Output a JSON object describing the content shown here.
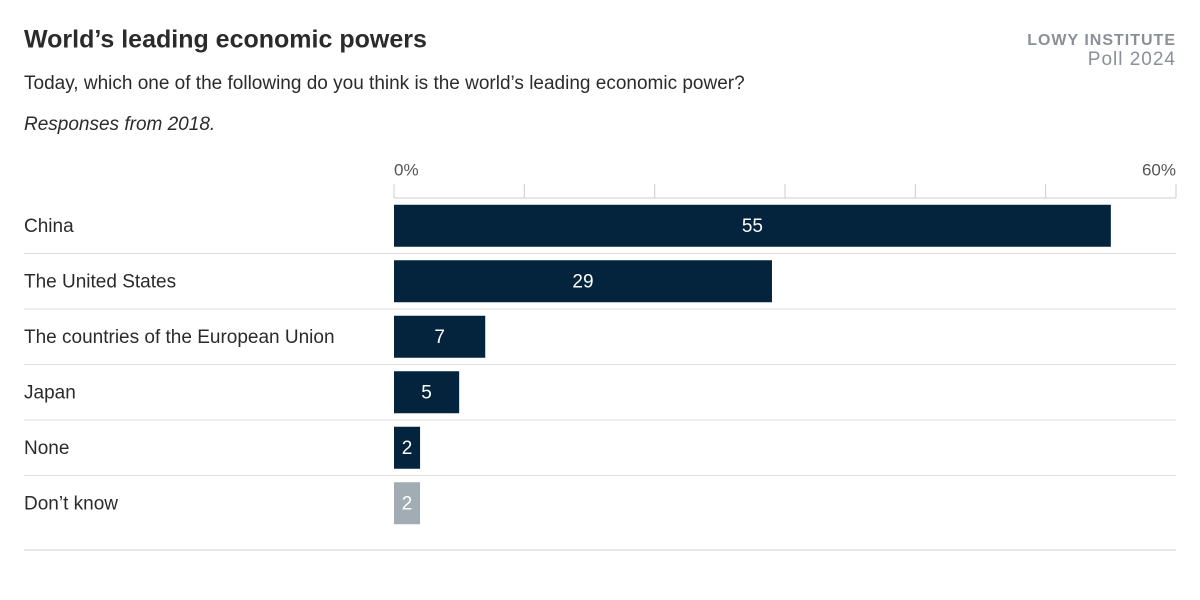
{
  "chart_data": {
    "type": "bar",
    "orientation": "horizontal",
    "title": "World’s leading economic powers",
    "subtitle": "Today, which one of the following do you think is the world’s leading economic power?",
    "note": "Responses from 2018.",
    "brand": "LOWY INSTITUTE",
    "brand_sub": "Poll 2024",
    "categories": [
      "China",
      "The United States",
      "The countries of the European Union",
      "Japan",
      "None",
      "Don’t know"
    ],
    "values": [
      55,
      29,
      7,
      5,
      2,
      2
    ],
    "colors": [
      "#04243d",
      "#04243d",
      "#04243d",
      "#04243d",
      "#04243d",
      "#a2acb3"
    ],
    "xlim": [
      0,
      60
    ],
    "xticks": [
      {
        "value": 0,
        "label": "0%"
      },
      {
        "value": 10,
        "label": null
      },
      {
        "value": 20,
        "label": null
      },
      {
        "value": 30,
        "label": null
      },
      {
        "value": 40,
        "label": null
      },
      {
        "value": 50,
        "label": null
      },
      {
        "value": 60,
        "label": "60%"
      }
    ]
  }
}
